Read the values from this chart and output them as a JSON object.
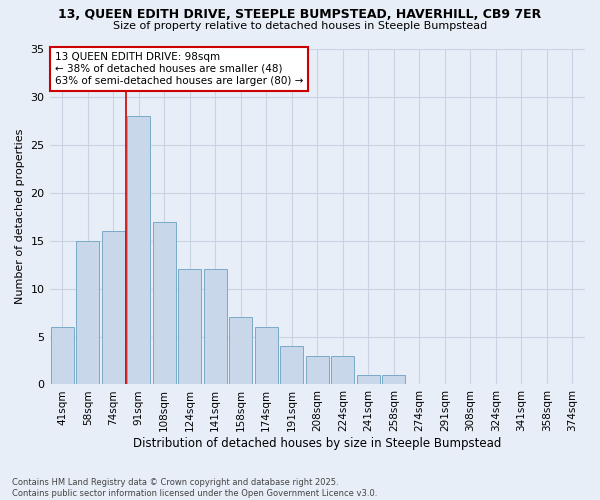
{
  "title_line1": "13, QUEEN EDITH DRIVE, STEEPLE BUMPSTEAD, HAVERHILL, CB9 7ER",
  "title_line2": "Size of property relative to detached houses in Steeple Bumpstead",
  "xlabel": "Distribution of detached houses by size in Steeple Bumpstead",
  "ylabel": "Number of detached properties",
  "categories": [
    "41sqm",
    "58sqm",
    "74sqm",
    "91sqm",
    "108sqm",
    "124sqm",
    "141sqm",
    "158sqm",
    "174sqm",
    "191sqm",
    "208sqm",
    "224sqm",
    "241sqm",
    "258sqm",
    "274sqm",
    "291sqm",
    "308sqm",
    "324sqm",
    "341sqm",
    "358sqm",
    "374sqm"
  ],
  "values": [
    6,
    15,
    16,
    28,
    17,
    12,
    12,
    7,
    6,
    4,
    3,
    3,
    1,
    1,
    0,
    0,
    0,
    0,
    0,
    0,
    0
  ],
  "bar_color": "#c8d8ea",
  "bar_edge_color": "#7aaac8",
  "grid_color": "#c8d4e4",
  "subject_line_color": "#cc0000",
  "annotation_text": "13 QUEEN EDITH DRIVE: 98sqm\n← 38% of detached houses are smaller (48)\n63% of semi-detached houses are larger (80) →",
  "annotation_box_color": "#ffffff",
  "annotation_box_edge": "#cc0000",
  "ylim": [
    0,
    35
  ],
  "yticks": [
    0,
    5,
    10,
    15,
    20,
    25,
    30,
    35
  ],
  "footnote": "Contains HM Land Registry data © Crown copyright and database right 2025.\nContains public sector information licensed under the Open Government Licence v3.0.",
  "bg_color": "#e8eef8",
  "plot_bg_color": "#e8eef8"
}
